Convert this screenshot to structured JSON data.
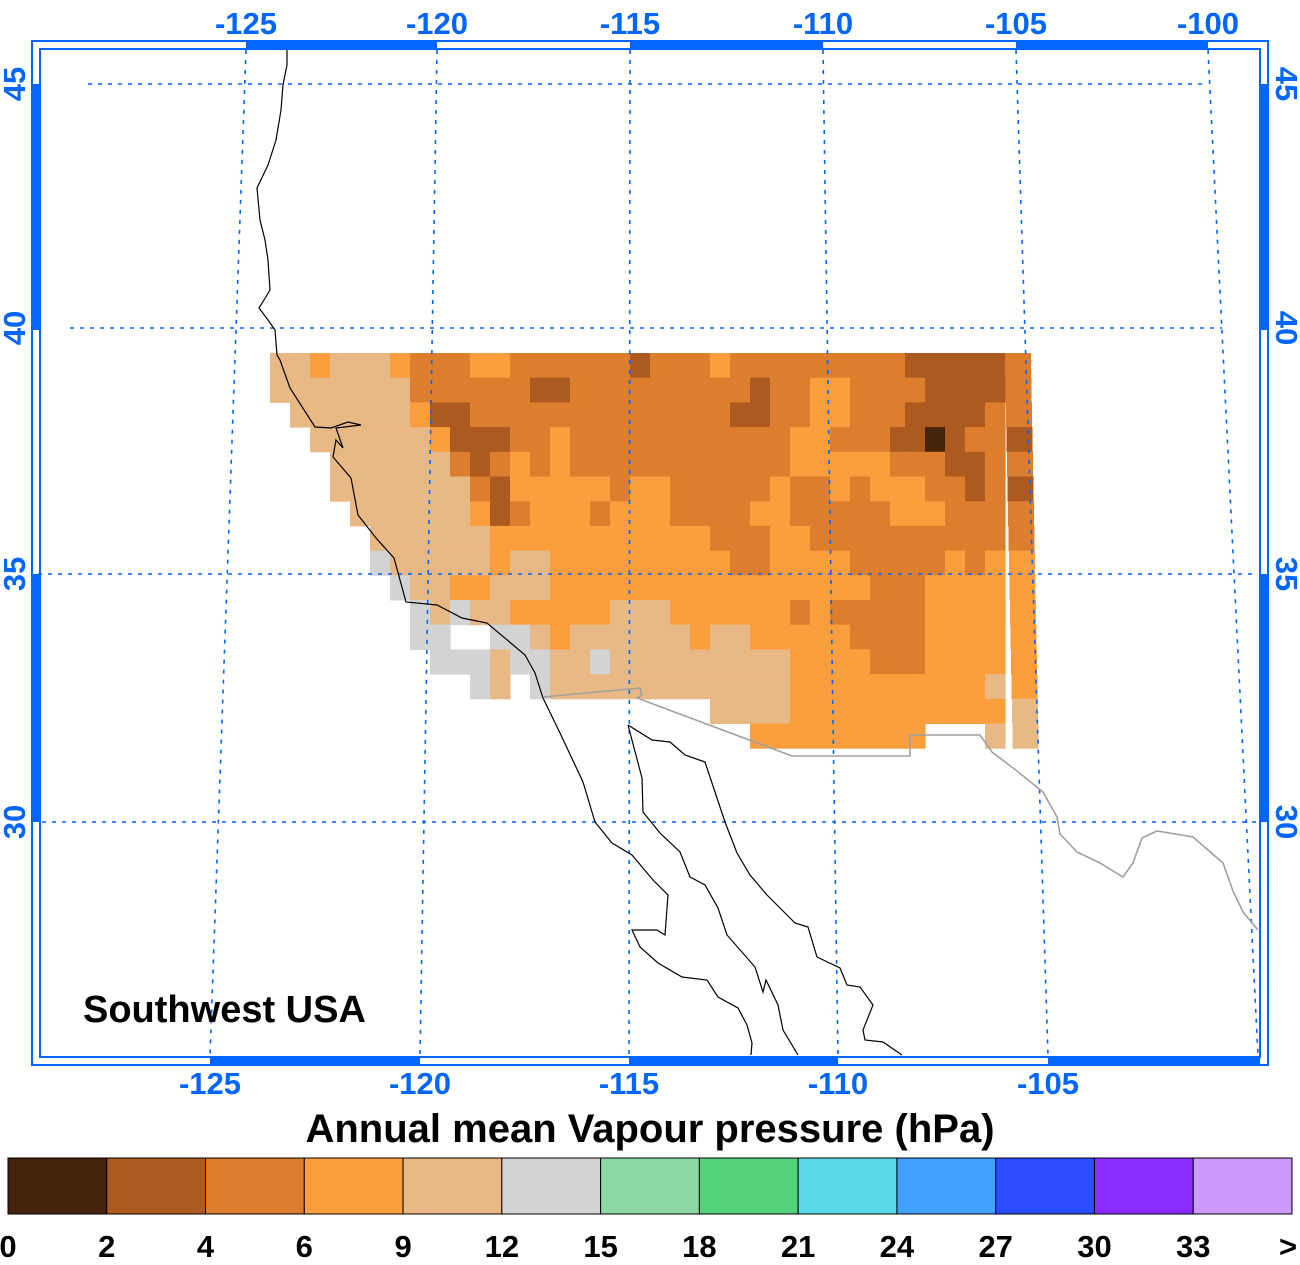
{
  "map": {
    "region_label": "Southwest USA",
    "title": "Annual mean Vapour pressure (hPa)",
    "top_lon_labels": [
      "-125",
      "-120",
      "-115",
      "-110",
      "-105",
      "-100"
    ],
    "bottom_lon_labels": [
      "-125",
      "-120",
      "-115",
      "-110",
      "-105"
    ],
    "left_lat_labels": [
      "45",
      "40",
      "35",
      "30"
    ],
    "right_lat_labels": [
      "45",
      "40",
      "35",
      "30"
    ],
    "axis_color": "#0066ff",
    "coast_color": "#000000",
    "border_color": "#a0a0a0"
  },
  "legend": {
    "labels": [
      "0",
      "2",
      "4",
      "6",
      "9",
      "12",
      "15",
      "18",
      "21",
      "24",
      "27",
      "30",
      "33",
      ">"
    ],
    "colors": [
      "#45220b",
      "#ac5a1f",
      "#dd7e2e",
      "#fa9e3e",
      "#e9b985",
      "#d3d3d3",
      "#8cd9a4",
      "#54d17b",
      "#5adae8",
      "#40a2ff",
      "#2a4dff",
      "#8a2cff",
      "#cd99fb"
    ]
  },
  "grid": {
    "description_codes": "digits index legend colors (1=0-2 ... 6=12-15), '.' = no data",
    "rows": [
      "55455543334433333323334333333333222223",
      "55555553333332233333333323344333322223",
      ".5555554223333333333333223344333222233",
      "..555555422233433333333333443332212332",
      "...55555532343433333333333444443332233",
      "...55555553244444344333334334344433232",
      "....555555423444344433334433333444 3333",
      ".....55555544444444444333443333333333 3",
      ".....65555545544444444433444433333434 4",
      "......6554455544444444444444443334444 4",
      ".......6565544444555444444343333344444",
      ".......66..665455555545544444333344444",
      "........66656655655555555544443334444 4",
      "..........65.6555555555555444444444454",
      "......................5555444444444445",
      "........................444444444...55"
    ]
  }
}
